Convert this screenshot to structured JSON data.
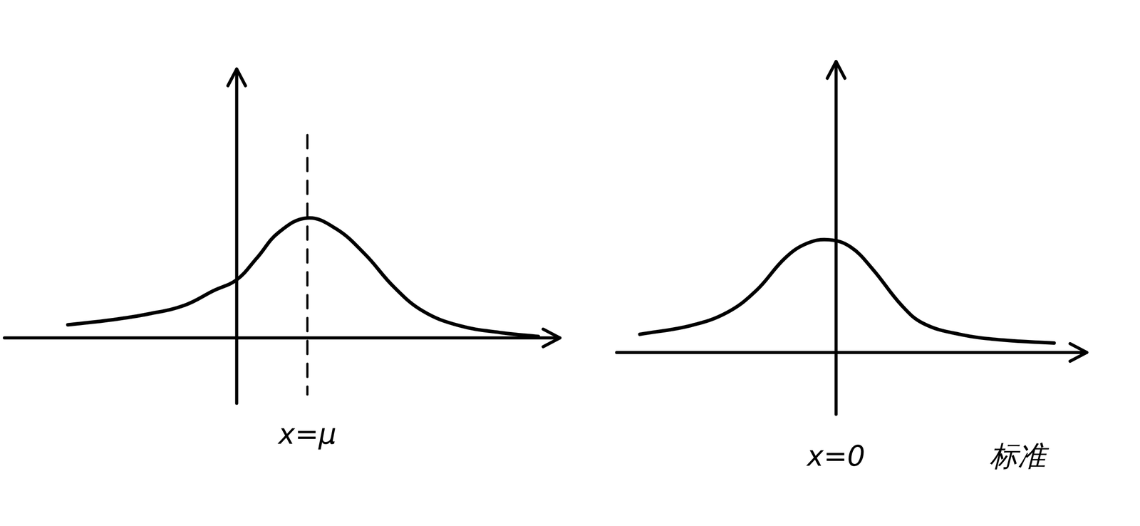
{
  "chart_data": [
    {
      "type": "line",
      "color": "#000000",
      "grid": false,
      "tick_labels": false,
      "xlim": [
        -3.22,
        4.48
      ],
      "ylim": [
        -0.9,
        3.7
      ],
      "x": [
        -2.34,
        -1.72,
        -1.22,
        -0.72,
        -0.32,
        0,
        0.28,
        0.58,
        0.98,
        1.38,
        1.78,
        2.18,
        2.58,
        3.08,
        3.68,
        4.18
      ],
      "values": [
        0.18,
        0.25,
        0.33,
        0.45,
        0.65,
        0.8,
        1.1,
        1.45,
        1.65,
        1.5,
        1.15,
        0.7,
        0.37,
        0.17,
        0.07,
        0.02
      ],
      "reference_line": {
        "x": 0.98,
        "line_style": "dashed"
      },
      "annotations": [
        {
          "text": "x=μ",
          "x": 0.98
        }
      ]
    },
    {
      "type": "line",
      "color": "#000000",
      "grid": false,
      "tick_labels": false,
      "xlim": [
        -3.02,
        3.45
      ],
      "ylim": [
        -0.85,
        4.0
      ],
      "x": [
        -2.7,
        -2.0,
        -1.5,
        -1.1,
        -0.7,
        -0.4,
        -0.1,
        0.2,
        0.5,
        0.9,
        1.2,
        1.7,
        2.3,
        3.0
      ],
      "values": [
        0.25,
        0.37,
        0.55,
        0.85,
        1.3,
        1.5,
        1.55,
        1.45,
        1.15,
        0.65,
        0.4,
        0.25,
        0.17,
        0.13
      ],
      "annotations": [
        {
          "text": "x=0",
          "x": 0
        },
        {
          "text": "标准",
          "x": 2.5
        }
      ]
    }
  ]
}
